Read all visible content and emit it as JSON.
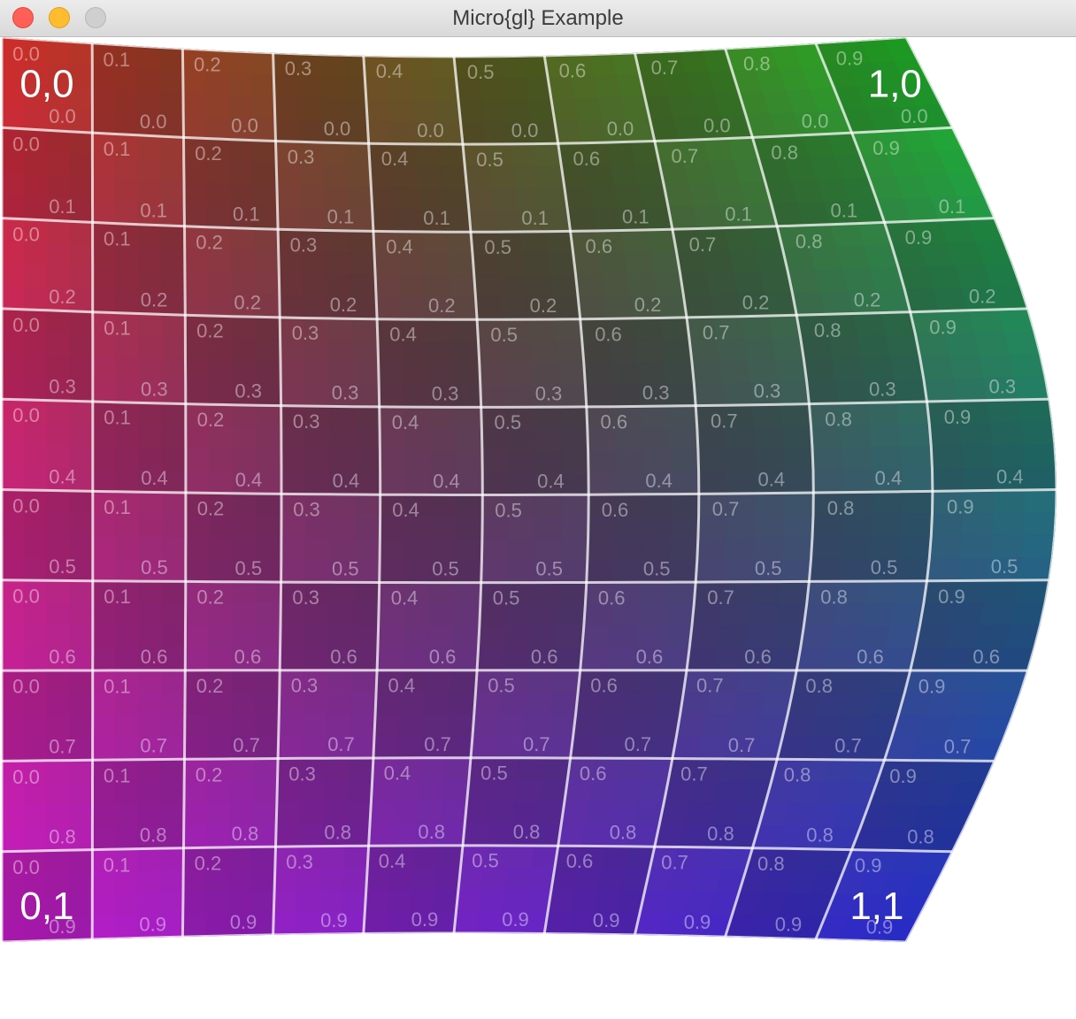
{
  "window": {
    "title": "Micro{gl} Example",
    "controls": {
      "close_color": "#ff5f57",
      "minimize_color": "#febc2e",
      "zoom_color": "#cfcfcf"
    }
  },
  "texture": {
    "description_icon": "uv-grid-texture",
    "grid_columns": 10,
    "grid_rows": 10,
    "u_labels": [
      "0.0",
      "0.1",
      "0.2",
      "0.3",
      "0.4",
      "0.5",
      "0.6",
      "0.7",
      "0.8",
      "0.9"
    ],
    "v_labels": [
      "0.0",
      "0.1",
      "0.2",
      "0.3",
      "0.4",
      "0.5",
      "0.6",
      "0.7",
      "0.8",
      "0.9"
    ],
    "corner_labels": {
      "top_left": "0,0",
      "top_right": "1,0",
      "bottom_left": "0,1",
      "bottom_right": "1,1"
    },
    "corner_colors": {
      "top_left": "#e0302c",
      "top_right": "#22c62a",
      "bottom_left": "#d41ed8",
      "bottom_right": "#2a2ed8"
    }
  }
}
